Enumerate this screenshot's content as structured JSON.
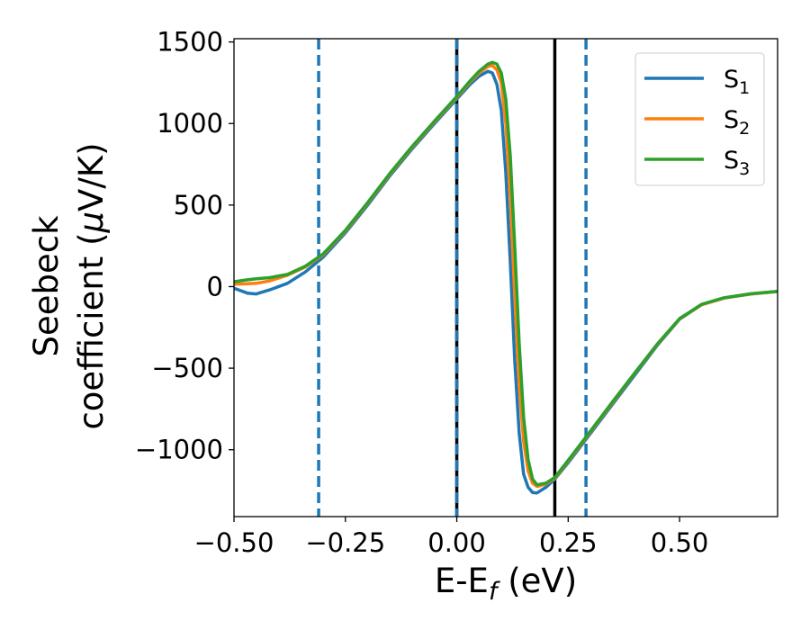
{
  "chart_data": {
    "type": "line",
    "xlabel": "E-E",
    "xlabel_sub": "f",
    "xlabel_unit": " (eV)",
    "ylabel_line1": "Seebeck",
    "ylabel_line2_pre": "coefficient  (",
    "ylabel_mu": "μ",
    "ylabel_line2_post": "V/K)",
    "xlim": [
      -0.5,
      0.72
    ],
    "ylim": [
      -1410,
      1520
    ],
    "xticks": [
      -0.5,
      -0.25,
      0.0,
      0.25,
      0.5
    ],
    "xtick_labels": [
      "−0.50",
      "−0.25",
      "0.00",
      "0.25",
      "0.50"
    ],
    "yticks": [
      -1000,
      -500,
      0,
      500,
      1000,
      1500
    ],
    "ytick_labels": [
      "−1000",
      "−500",
      "0",
      "500",
      "1000",
      "1500"
    ],
    "grid": false,
    "legend_position": "top-right",
    "vlines": [
      {
        "x": -0.31,
        "style": "dashed",
        "color": "#1f77b4"
      },
      {
        "x": 0.0,
        "style": "solid",
        "color": "#000000"
      },
      {
        "x": 0.0,
        "style": "dashed",
        "color": "#1f77b4"
      },
      {
        "x": 0.22,
        "style": "solid",
        "color": "#000000"
      },
      {
        "x": 0.29,
        "style": "dashed",
        "color": "#1f77b4"
      }
    ],
    "series": [
      {
        "name": "S",
        "sub": "1",
        "color": "#1f77b4",
        "points": [
          [
            -0.5,
            -10
          ],
          [
            -0.47,
            -40
          ],
          [
            -0.45,
            -45
          ],
          [
            -0.42,
            -20
          ],
          [
            -0.38,
            20
          ],
          [
            -0.34,
            90
          ],
          [
            -0.3,
            180
          ],
          [
            -0.25,
            330
          ],
          [
            -0.2,
            500
          ],
          [
            -0.15,
            680
          ],
          [
            -0.1,
            845
          ],
          [
            -0.05,
            1000
          ],
          [
            0.0,
            1150
          ],
          [
            0.03,
            1240
          ],
          [
            0.05,
            1290
          ],
          [
            0.07,
            1320
          ],
          [
            0.08,
            1310
          ],
          [
            0.09,
            1240
          ],
          [
            0.1,
            1080
          ],
          [
            0.11,
            700
          ],
          [
            0.12,
            150
          ],
          [
            0.13,
            -450
          ],
          [
            0.14,
            -900
          ],
          [
            0.15,
            -1150
          ],
          [
            0.16,
            -1230
          ],
          [
            0.17,
            -1262
          ],
          [
            0.18,
            -1265
          ],
          [
            0.2,
            -1230
          ],
          [
            0.22,
            -1180
          ],
          [
            0.25,
            -1080
          ],
          [
            0.3,
            -900
          ],
          [
            0.35,
            -720
          ],
          [
            0.4,
            -540
          ],
          [
            0.45,
            -360
          ],
          [
            0.5,
            -200
          ],
          [
            0.55,
            -110
          ],
          [
            0.6,
            -70
          ],
          [
            0.66,
            -45
          ],
          [
            0.72,
            -30
          ]
        ]
      },
      {
        "name": "S",
        "sub": "2",
        "color": "#ff7f0e",
        "points": [
          [
            -0.5,
            15
          ],
          [
            -0.47,
            18
          ],
          [
            -0.45,
            20
          ],
          [
            -0.42,
            35
          ],
          [
            -0.38,
            70
          ],
          [
            -0.34,
            120
          ],
          [
            -0.3,
            195
          ],
          [
            -0.25,
            340
          ],
          [
            -0.2,
            510
          ],
          [
            -0.15,
            690
          ],
          [
            -0.1,
            855
          ],
          [
            -0.05,
            1010
          ],
          [
            0.0,
            1160
          ],
          [
            0.03,
            1255
          ],
          [
            0.05,
            1310
          ],
          [
            0.07,
            1350
          ],
          [
            0.08,
            1355
          ],
          [
            0.09,
            1330
          ],
          [
            0.1,
            1250
          ],
          [
            0.11,
            1000
          ],
          [
            0.12,
            550
          ],
          [
            0.13,
            -50
          ],
          [
            0.14,
            -600
          ],
          [
            0.15,
            -950
          ],
          [
            0.16,
            -1130
          ],
          [
            0.17,
            -1205
          ],
          [
            0.18,
            -1225
          ],
          [
            0.2,
            -1210
          ],
          [
            0.22,
            -1175
          ],
          [
            0.25,
            -1070
          ],
          [
            0.3,
            -890
          ],
          [
            0.35,
            -710
          ],
          [
            0.4,
            -530
          ],
          [
            0.45,
            -355
          ],
          [
            0.5,
            -198
          ],
          [
            0.55,
            -110
          ],
          [
            0.6,
            -70
          ],
          [
            0.66,
            -45
          ],
          [
            0.72,
            -30
          ]
        ]
      },
      {
        "name": "S",
        "sub": "3",
        "color": "#2ca02c",
        "points": [
          [
            -0.5,
            30
          ],
          [
            -0.47,
            42
          ],
          [
            -0.45,
            48
          ],
          [
            -0.42,
            55
          ],
          [
            -0.38,
            75
          ],
          [
            -0.34,
            125
          ],
          [
            -0.3,
            200
          ],
          [
            -0.25,
            345
          ],
          [
            -0.2,
            515
          ],
          [
            -0.15,
            695
          ],
          [
            -0.1,
            860
          ],
          [
            -0.05,
            1015
          ],
          [
            0.0,
            1165
          ],
          [
            0.03,
            1262
          ],
          [
            0.05,
            1320
          ],
          [
            0.07,
            1365
          ],
          [
            0.08,
            1375
          ],
          [
            0.09,
            1365
          ],
          [
            0.1,
            1310
          ],
          [
            0.11,
            1150
          ],
          [
            0.12,
            800
          ],
          [
            0.13,
            250
          ],
          [
            0.14,
            -350
          ],
          [
            0.15,
            -800
          ],
          [
            0.16,
            -1060
          ],
          [
            0.17,
            -1180
          ],
          [
            0.18,
            -1215
          ],
          [
            0.2,
            -1205
          ],
          [
            0.22,
            -1170
          ],
          [
            0.25,
            -1065
          ],
          [
            0.3,
            -885
          ],
          [
            0.35,
            -705
          ],
          [
            0.4,
            -527
          ],
          [
            0.45,
            -352
          ],
          [
            0.5,
            -196
          ],
          [
            0.55,
            -108
          ],
          [
            0.6,
            -68
          ],
          [
            0.66,
            -44
          ],
          [
            0.72,
            -29
          ]
        ]
      }
    ]
  }
}
